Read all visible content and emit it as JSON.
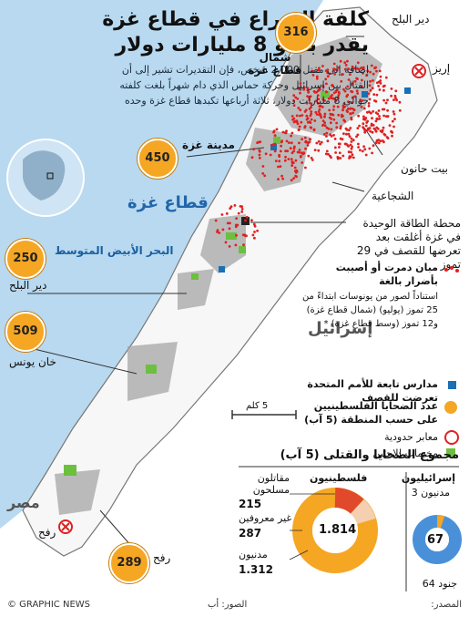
{
  "title_line1": "كلفة الصراع في قطاع غزة",
  "title_line2": "يقدر بنحو 8 مليارات دولار",
  "subtitle": "إضافة إلى مقتل 2.000 شخص، فإن التقديرات تشير إلى أن القتال بين إسرائيل وحركة حماس الذي دام شهراً بلغت كلفته حوالي 8 مليارات دولار، ثلاثة أرباعها تكبدها قطاع غزة وحده",
  "colors": {
    "sea": "#b8d9f0",
    "land": "#ffffff",
    "badge": "#f5a623",
    "damage": "#e02020",
    "urban": "#a0a0a0",
    "camp": "#6cbf3f",
    "un_school": "#1a6fb5"
  },
  "map_labels": {
    "gaza_strip": "قطاع غزة",
    "mediterranean": "البحر الأبيض المتوسط",
    "israel": "إسرائيل",
    "egypt": "مصر",
    "deir_balah_top": "دير البلح",
    "erez": "إريز",
    "north_gaza": "شمال قطاع غزة",
    "gaza_city": "مدينة غزة",
    "beit_hanoun": "بيت حانون",
    "shujaiya": "الشجاعية",
    "power_station": "محطة الطاقة الوحيدة في غزة أغلقت بعد تعرضها للقصف في 29 تموز",
    "deir_balah": "دير البلح",
    "khan_younis": "خان يونس",
    "rafah_crossing": "رفح",
    "rafah": "رفح",
    "scale": "5 كلم"
  },
  "badges": {
    "north": "316",
    "gaza_city": "450",
    "deir_balah": "250",
    "khan_younis": "509",
    "rafah": "289"
  },
  "legend": {
    "damaged": "مبان دمرت أو أصيبت بأضرار بالغة",
    "damaged_note": "استناداً لصور من يونوسات ابتداءً من 25 تموز (يوليو) (شمال قطاع غزة) و12 تموز (وسط قطاع غزة) *",
    "un_schools": "مدارس تابعة للأمم المتحدة تعرضت للقصف",
    "casualties": "عدد الضحايا الفلسطينيين على حسب المنطقة (5 آب)",
    "crossings": "معابر حدودية",
    "camps": "مخيمات للاجئين"
  },
  "casualty_box": {
    "title": "مجموع الضحايا والقتلى (5 آب)",
    "israelis_label": "إسرائيليون",
    "israelis_civilians_label": "مدنيون 3",
    "israelis_total": "67",
    "israelis_soldiers_label": "جنود 64",
    "palestinians_label": "فلسطينيون",
    "palestinians_total": "1.814",
    "fighters_label": "مقاتلون مسلحون",
    "fighters_value": "215",
    "unknown_label": "غير معروفين",
    "unknown_value": "287",
    "civilians_label": "مدنيون",
    "civilians_value": "1.312"
  },
  "casualty_chart_data": {
    "type": "pie",
    "palestinians": [
      {
        "name": "مدنيون",
        "value": 1312
      },
      {
        "name": "غير معروفين",
        "value": 287
      },
      {
        "name": "مقاتلون مسلحون",
        "value": 215
      }
    ],
    "israelis": [
      {
        "name": "جنود",
        "value": 64
      },
      {
        "name": "مدنيون",
        "value": 3
      }
    ]
  },
  "footer": {
    "source": "المصدر:",
    "photos": "الصور: أب",
    "credit": "© GRAPHIC NEWS"
  }
}
